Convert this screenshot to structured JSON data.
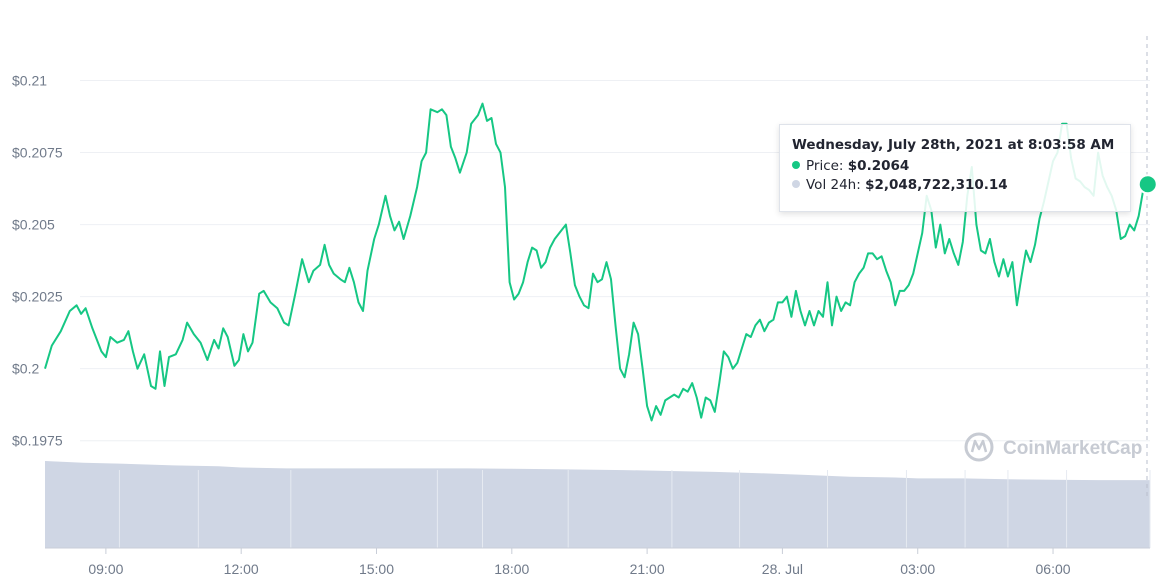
{
  "chart_data": {
    "type": "line",
    "title": "",
    "xlabel": "",
    "ylabel": "",
    "ylim": [
      0.1969,
      0.2121
    ],
    "y_ticks": [
      "$0.1975",
      "$0.2",
      "$0.2025",
      "$0.205",
      "$0.2075",
      "$0.21"
    ],
    "y_tick_values": [
      0.1975,
      0.2,
      0.2025,
      0.205,
      0.2075,
      0.21
    ],
    "x_range": [
      7.65,
      32.15
    ],
    "x_ticks": [
      "09:00",
      "12:00",
      "15:00",
      "18:00",
      "21:00",
      "28. Jul",
      "03:00",
      "06:00"
    ],
    "x_tick_values": [
      9,
      12,
      15,
      18,
      21,
      24,
      27,
      30
    ],
    "grid": true,
    "line_color": "#16c784",
    "volume_color": "#cfd6e4",
    "series": [
      {
        "values": [
          [
            7.65,
            0.2
          ],
          [
            7.8,
            0.2008
          ],
          [
            8.0,
            0.2013
          ],
          [
            8.2,
            0.202
          ],
          [
            8.35,
            0.2022
          ],
          [
            8.45,
            0.2019
          ],
          [
            8.55,
            0.2021
          ],
          [
            8.7,
            0.2014
          ],
          [
            8.9,
            0.2006
          ],
          [
            9.0,
            0.2004
          ],
          [
            9.1,
            0.2011
          ],
          [
            9.25,
            0.2009
          ],
          [
            9.4,
            0.201
          ],
          [
            9.5,
            0.2013
          ],
          [
            9.6,
            0.2006
          ],
          [
            9.7,
            0.2
          ],
          [
            9.85,
            0.2005
          ],
          [
            10.0,
            0.1994
          ],
          [
            10.1,
            0.1993
          ],
          [
            10.2,
            0.2006
          ],
          [
            10.3,
            0.1994
          ],
          [
            10.4,
            0.2004
          ],
          [
            10.55,
            0.2005
          ],
          [
            10.7,
            0.201
          ],
          [
            10.8,
            0.2016
          ],
          [
            10.95,
            0.2012
          ],
          [
            11.1,
            0.2009
          ],
          [
            11.25,
            0.2003
          ],
          [
            11.4,
            0.201
          ],
          [
            11.5,
            0.2007
          ],
          [
            11.6,
            0.2014
          ],
          [
            11.7,
            0.2011
          ],
          [
            11.85,
            0.2001
          ],
          [
            11.95,
            0.2003
          ],
          [
            12.05,
            0.2012
          ],
          [
            12.15,
            0.2006
          ],
          [
            12.25,
            0.2009
          ],
          [
            12.4,
            0.2026
          ],
          [
            12.5,
            0.2027
          ],
          [
            12.65,
            0.2023
          ],
          [
            12.8,
            0.2021
          ],
          [
            12.95,
            0.2016
          ],
          [
            13.05,
            0.2015
          ],
          [
            13.2,
            0.2026
          ],
          [
            13.35,
            0.2038
          ],
          [
            13.5,
            0.203
          ],
          [
            13.6,
            0.2034
          ],
          [
            13.75,
            0.2036
          ],
          [
            13.85,
            0.2043
          ],
          [
            13.95,
            0.2036
          ],
          [
            14.05,
            0.2033
          ],
          [
            14.2,
            0.2031
          ],
          [
            14.3,
            0.203
          ],
          [
            14.4,
            0.2035
          ],
          [
            14.5,
            0.203
          ],
          [
            14.6,
            0.2023
          ],
          [
            14.7,
            0.202
          ],
          [
            14.8,
            0.2034
          ],
          [
            14.95,
            0.2045
          ],
          [
            15.05,
            0.205
          ],
          [
            15.2,
            0.206
          ],
          [
            15.3,
            0.2053
          ],
          [
            15.4,
            0.2048
          ],
          [
            15.5,
            0.2051
          ],
          [
            15.6,
            0.2045
          ],
          [
            15.75,
            0.2053
          ],
          [
            15.9,
            0.2063
          ],
          [
            16.0,
            0.2072
          ],
          [
            16.1,
            0.2075
          ],
          [
            16.2,
            0.209
          ],
          [
            16.35,
            0.2089
          ],
          [
            16.45,
            0.209
          ],
          [
            16.55,
            0.2088
          ],
          [
            16.65,
            0.2077
          ],
          [
            16.75,
            0.2073
          ],
          [
            16.85,
            0.2068
          ],
          [
            17.0,
            0.2075
          ],
          [
            17.1,
            0.2085
          ],
          [
            17.25,
            0.2088
          ],
          [
            17.35,
            0.2092
          ],
          [
            17.45,
            0.2086
          ],
          [
            17.55,
            0.2087
          ],
          [
            17.65,
            0.2078
          ],
          [
            17.75,
            0.2075
          ],
          [
            17.85,
            0.2063
          ],
          [
            17.95,
            0.203
          ],
          [
            18.05,
            0.2024
          ],
          [
            18.15,
            0.2026
          ],
          [
            18.25,
            0.203
          ],
          [
            18.35,
            0.2037
          ],
          [
            18.45,
            0.2042
          ],
          [
            18.55,
            0.2041
          ],
          [
            18.65,
            0.2035
          ],
          [
            18.75,
            0.2037
          ],
          [
            18.85,
            0.2042
          ],
          [
            18.95,
            0.2045
          ],
          [
            19.1,
            0.2048
          ],
          [
            19.2,
            0.205
          ],
          [
            19.3,
            0.204
          ],
          [
            19.4,
            0.2029
          ],
          [
            19.5,
            0.2025
          ],
          [
            19.6,
            0.2022
          ],
          [
            19.7,
            0.2021
          ],
          [
            19.8,
            0.2033
          ],
          [
            19.9,
            0.203
          ],
          [
            20.0,
            0.2031
          ],
          [
            20.1,
            0.2037
          ],
          [
            20.2,
            0.2031
          ],
          [
            20.3,
            0.2015
          ],
          [
            20.4,
            0.2
          ],
          [
            20.5,
            0.1997
          ],
          [
            20.6,
            0.2005
          ],
          [
            20.7,
            0.2016
          ],
          [
            20.8,
            0.2012
          ],
          [
            20.9,
            0.2
          ],
          [
            21.0,
            0.1987
          ],
          [
            21.1,
            0.1982
          ],
          [
            21.2,
            0.1987
          ],
          [
            21.3,
            0.1984
          ],
          [
            21.4,
            0.1989
          ],
          [
            21.5,
            0.199
          ],
          [
            21.6,
            0.1991
          ],
          [
            21.7,
            0.199
          ],
          [
            21.8,
            0.1993
          ],
          [
            21.9,
            0.1992
          ],
          [
            22.0,
            0.1995
          ],
          [
            22.1,
            0.199
          ],
          [
            22.2,
            0.1983
          ],
          [
            22.3,
            0.199
          ],
          [
            22.4,
            0.1989
          ],
          [
            22.5,
            0.1985
          ],
          [
            22.6,
            0.1995
          ],
          [
            22.7,
            0.2006
          ],
          [
            22.8,
            0.2004
          ],
          [
            22.9,
            0.2
          ],
          [
            23.0,
            0.2002
          ],
          [
            23.1,
            0.2007
          ],
          [
            23.2,
            0.2012
          ],
          [
            23.3,
            0.2011
          ],
          [
            23.4,
            0.2015
          ],
          [
            23.5,
            0.2017
          ],
          [
            23.6,
            0.2013
          ],
          [
            23.7,
            0.2016
          ],
          [
            23.8,
            0.2017
          ],
          [
            23.9,
            0.2023
          ],
          [
            24.0,
            0.2023
          ],
          [
            24.1,
            0.2025
          ],
          [
            24.2,
            0.2018
          ],
          [
            24.3,
            0.2027
          ],
          [
            24.4,
            0.202
          ],
          [
            24.5,
            0.2015
          ],
          [
            24.6,
            0.202
          ],
          [
            24.7,
            0.2015
          ],
          [
            24.8,
            0.202
          ],
          [
            24.9,
            0.2018
          ],
          [
            25.0,
            0.203
          ],
          [
            25.1,
            0.2015
          ],
          [
            25.2,
            0.2025
          ],
          [
            25.3,
            0.202
          ],
          [
            25.4,
            0.2023
          ],
          [
            25.5,
            0.2022
          ],
          [
            25.6,
            0.203
          ],
          [
            25.7,
            0.2033
          ],
          [
            25.8,
            0.2035
          ],
          [
            25.9,
            0.204
          ],
          [
            26.0,
            0.204
          ],
          [
            26.1,
            0.2038
          ],
          [
            26.2,
            0.2039
          ],
          [
            26.3,
            0.2034
          ],
          [
            26.4,
            0.203
          ],
          [
            26.5,
            0.2022
          ],
          [
            26.6,
            0.2027
          ],
          [
            26.7,
            0.2027
          ],
          [
            26.8,
            0.2029
          ],
          [
            26.9,
            0.2033
          ],
          [
            27.0,
            0.204
          ],
          [
            27.1,
            0.2047
          ],
          [
            27.2,
            0.206
          ],
          [
            27.3,
            0.2055
          ],
          [
            27.4,
            0.2042
          ],
          [
            27.5,
            0.205
          ],
          [
            27.6,
            0.204
          ],
          [
            27.7,
            0.2045
          ],
          [
            27.8,
            0.204
          ],
          [
            27.9,
            0.2036
          ],
          [
            28.0,
            0.2044
          ],
          [
            28.1,
            0.206
          ],
          [
            28.2,
            0.207
          ],
          [
            28.3,
            0.205
          ],
          [
            28.4,
            0.2041
          ],
          [
            28.5,
            0.204
          ],
          [
            28.6,
            0.2045
          ],
          [
            28.7,
            0.2037
          ],
          [
            28.8,
            0.2032
          ],
          [
            28.9,
            0.2038
          ],
          [
            29.0,
            0.2032
          ],
          [
            29.1,
            0.2037
          ],
          [
            29.2,
            0.2022
          ],
          [
            29.3,
            0.2032
          ],
          [
            29.4,
            0.2041
          ],
          [
            29.5,
            0.2037
          ],
          [
            29.6,
            0.2043
          ],
          [
            29.7,
            0.2052
          ],
          [
            29.8,
            0.2058
          ],
          [
            29.9,
            0.2065
          ],
          [
            30.0,
            0.2072
          ],
          [
            30.1,
            0.2075
          ],
          [
            30.2,
            0.2085
          ],
          [
            30.3,
            0.2085
          ],
          [
            30.4,
            0.2073
          ],
          [
            30.5,
            0.2066
          ],
          [
            30.6,
            0.2065
          ],
          [
            30.7,
            0.2063
          ],
          [
            30.8,
            0.2062
          ],
          [
            30.9,
            0.206
          ],
          [
            31.0,
            0.2075
          ],
          [
            31.1,
            0.2067
          ],
          [
            31.2,
            0.2063
          ],
          [
            31.3,
            0.206
          ],
          [
            31.4,
            0.2055
          ],
          [
            31.5,
            0.2045
          ],
          [
            31.6,
            0.2046
          ],
          [
            31.7,
            0.205
          ],
          [
            31.8,
            0.2048
          ],
          [
            31.9,
            0.2053
          ],
          [
            32.0,
            0.2062
          ],
          [
            32.1,
            0.2064
          ]
        ]
      }
    ],
    "volume": {
      "x": [
        7.65,
        8.5,
        9.3,
        10.5,
        11.5,
        12.0,
        13.0,
        14.5,
        16.0,
        17.0,
        18.0,
        19.0,
        20.5,
        21.5,
        22.5,
        23.5,
        24.5,
        25.5,
        26.5,
        27.0,
        28.0,
        29.0,
        30.0,
        31.0,
        32.15
      ],
      "values": [
        1.0,
        0.98,
        0.97,
        0.95,
        0.94,
        0.925,
        0.915,
        0.915,
        0.915,
        0.915,
        0.91,
        0.905,
        0.895,
        0.885,
        0.875,
        0.86,
        0.84,
        0.82,
        0.81,
        0.8,
        0.8,
        0.79,
        0.785,
        0.78,
        0.78
      ]
    },
    "volume_ticks_x": [
      9.3,
      11.05,
      13.1,
      16.35,
      17.35,
      19.25,
      21.55,
      23.05,
      25.0,
      26.75,
      28.05,
      29.0,
      30.3,
      32.15
    ],
    "highlight": {
      "x": 32.1,
      "y": 0.2064
    }
  },
  "tooltip": {
    "title": "Wednesday, July 28th, 2021 at 8:03:58 AM",
    "price_label": "Price:",
    "price_value": "$0.2064",
    "vol_label": "Vol 24h:",
    "vol_value": "$2,048,722,310.14",
    "price_color": "#16c784",
    "vol_color": "#cfd6e4"
  },
  "watermark": {
    "text": "CoinMarketCap"
  }
}
